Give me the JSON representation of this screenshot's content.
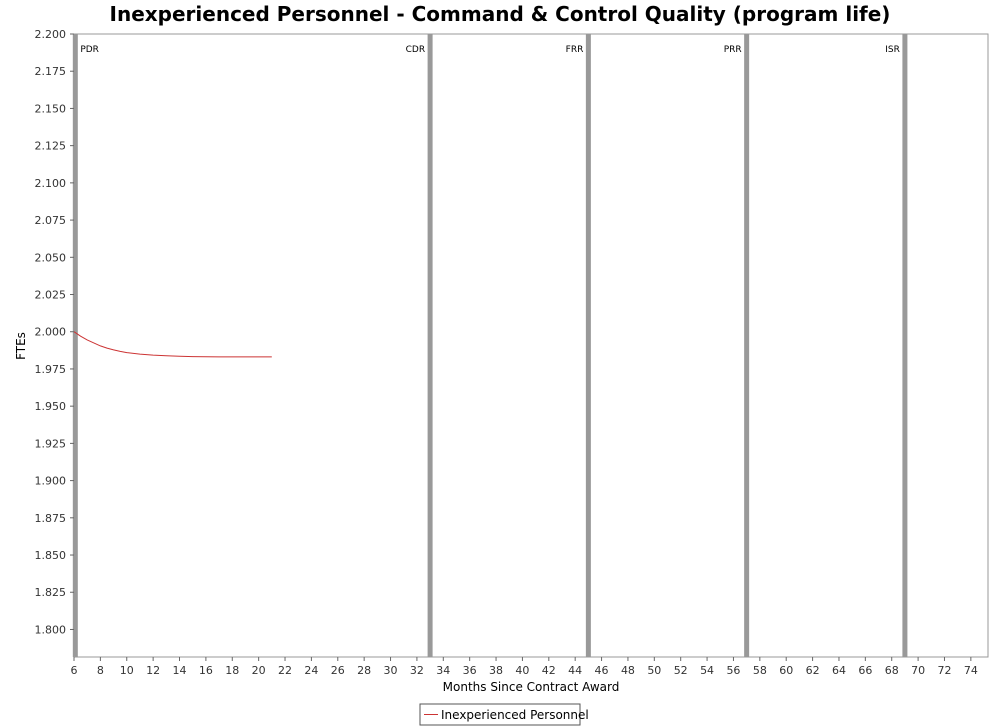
{
  "chart_data": {
    "type": "line",
    "title": "Inexperienced Personnel - Command & Control Quality (program life)",
    "xlabel": "Months Since Contract Award",
    "ylabel": "FTEs",
    "xlim": [
      6,
      75.3
    ],
    "ylim": [
      1.7815,
      2.2
    ],
    "x_ticks": [
      "6",
      "8",
      "10",
      "12",
      "14",
      "16",
      "18",
      "20",
      "22",
      "24",
      "26",
      "28",
      "30",
      "32",
      "34",
      "36",
      "38",
      "40",
      "42",
      "44",
      "46",
      "48",
      "50",
      "52",
      "54",
      "56",
      "58",
      "60",
      "62",
      "64",
      "66",
      "68",
      "70",
      "72",
      "74"
    ],
    "y_ticks": [
      "2.200",
      "2.175",
      "2.150",
      "2.125",
      "2.100",
      "2.075",
      "2.050",
      "2.025",
      "2.000",
      "1.975",
      "1.950",
      "1.925",
      "1.900",
      "1.875",
      "1.850",
      "1.825",
      "1.800"
    ],
    "grid": false,
    "legend_position": "bottom-center",
    "milestones": [
      {
        "label": "PDR",
        "x": 6.1
      },
      {
        "label": "CDR",
        "x": 33
      },
      {
        "label": "FRR",
        "x": 45
      },
      {
        "label": "PRR",
        "x": 57
      },
      {
        "label": "ISR",
        "x": 69
      }
    ],
    "series": [
      {
        "name": "Inexperienced Personnel",
        "color": "#cc3333",
        "x": [
          6,
          6.5,
          7,
          7.5,
          8,
          8.5,
          9,
          9.5,
          10,
          11,
          12,
          13,
          14,
          15,
          16,
          17,
          18,
          19,
          20,
          21
        ],
        "y": [
          2.0,
          1.997,
          1.9945,
          1.9925,
          1.9905,
          1.989,
          1.9878,
          1.9868,
          1.986,
          1.985,
          1.9843,
          1.9838,
          1.9835,
          1.9833,
          1.9832,
          1.9831,
          1.9831,
          1.9831,
          1.9831,
          1.9831
        ]
      }
    ]
  }
}
